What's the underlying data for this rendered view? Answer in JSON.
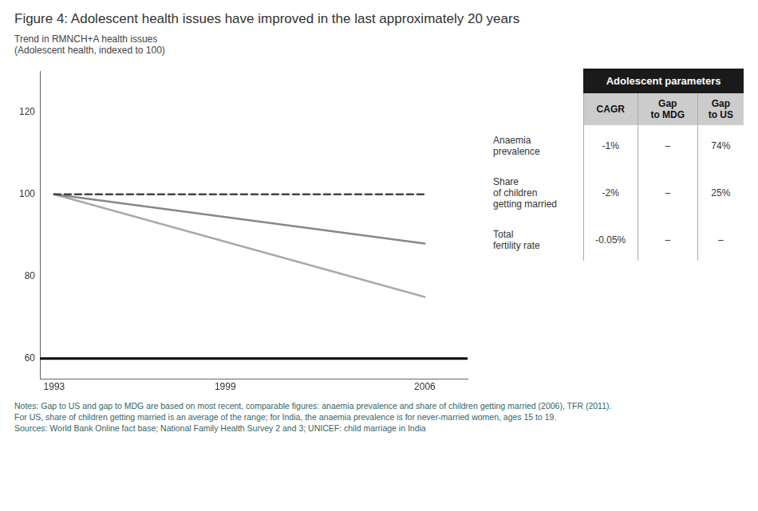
{
  "chart_data": {
    "type": "line",
    "title": "Figure 4: Adolescent health issues have improved in the last approximately 20 years",
    "subtitle": [
      "Trend in RMNCH+A health issues",
      "(Adolescent health, indexed to 100)"
    ],
    "x": [
      1993,
      2006
    ],
    "xlim": [
      1992.5,
      2007.5
    ],
    "xticks": [
      1993,
      1999,
      2006
    ],
    "ylim": [
      55,
      130
    ],
    "yticks": [
      60,
      80,
      100,
      120
    ],
    "grid": false,
    "baseline": 60,
    "series": [
      {
        "name": "Anaemia\nprevalence",
        "color": "#444444",
        "line_style": "dashed",
        "values": [
          100,
          100
        ]
      },
      {
        "name": "Share\nof children\ngetting married",
        "color": "#888888",
        "line_style": "solid",
        "values": [
          100,
          88
        ]
      },
      {
        "name": "Total\nfertility rate",
        "color": "#aaaaaa",
        "line_style": "solid",
        "values": [
          100,
          75
        ]
      }
    ],
    "table": {
      "title": "Adolescent parameters",
      "columns": [
        "CAGR",
        "Gap\nto MDG",
        "Gap\nto US"
      ],
      "rows": [
        [
          "-1%",
          "–",
          "74%"
        ],
        [
          "-2%",
          "–",
          "25%"
        ],
        [
          "-0.05%",
          "–",
          "–"
        ]
      ]
    },
    "notes": [
      "Notes: Gap to US and gap to MDG are based on most recent, comparable figures: anaemia prevalence and share of children getting married (2006), TFR (2011).",
      "For US, share of children getting married is an average of the range; for India, the anaemia prevalence is for never-married women, ages 15 to 19.",
      "Sources: World Bank Online fact base; National Family Health Survey 2 and 3; UNICEF: child marriage in India"
    ]
  }
}
